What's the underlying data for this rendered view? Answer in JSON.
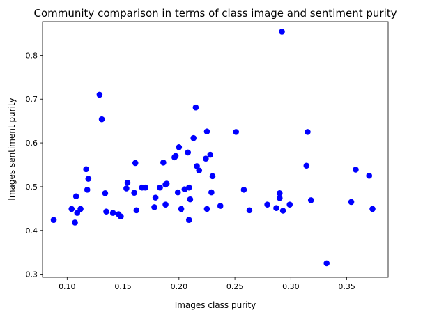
{
  "chart_data": {
    "type": "scatter",
    "title": "Community comparison in terms of class image and sentiment purity",
    "xlabel": "Images class purity",
    "ylabel": "Images sentiment purity",
    "xlim": [
      0.078,
      0.387
    ],
    "ylim": [
      0.293,
      0.877
    ],
    "x_ticks": [
      0.1,
      0.15,
      0.2,
      0.25,
      0.3,
      0.35
    ],
    "x_tick_labels": [
      "0.10",
      "0.15",
      "0.20",
      "0.25",
      "0.30",
      "0.35"
    ],
    "y_ticks": [
      0.3,
      0.4,
      0.5,
      0.6,
      0.7,
      0.8
    ],
    "y_tick_labels": [
      "0.3",
      "0.4",
      "0.5",
      "0.6",
      "0.7",
      "0.8"
    ],
    "grid": false,
    "legend": "none",
    "marker_color": "#0000ff",
    "points": [
      {
        "x": 0.088,
        "y": 0.424
      },
      {
        "x": 0.104,
        "y": 0.449
      },
      {
        "x": 0.107,
        "y": 0.418
      },
      {
        "x": 0.108,
        "y": 0.478
      },
      {
        "x": 0.109,
        "y": 0.44
      },
      {
        "x": 0.112,
        "y": 0.449
      },
      {
        "x": 0.117,
        "y": 0.54
      },
      {
        "x": 0.118,
        "y": 0.493
      },
      {
        "x": 0.119,
        "y": 0.518
      },
      {
        "x": 0.129,
        "y": 0.71
      },
      {
        "x": 0.131,
        "y": 0.654
      },
      {
        "x": 0.134,
        "y": 0.485
      },
      {
        "x": 0.135,
        "y": 0.443
      },
      {
        "x": 0.141,
        "y": 0.44
      },
      {
        "x": 0.146,
        "y": 0.437
      },
      {
        "x": 0.148,
        "y": 0.432
      },
      {
        "x": 0.153,
        "y": 0.496
      },
      {
        "x": 0.154,
        "y": 0.509
      },
      {
        "x": 0.16,
        "y": 0.486
      },
      {
        "x": 0.161,
        "y": 0.554
      },
      {
        "x": 0.162,
        "y": 0.446
      },
      {
        "x": 0.167,
        "y": 0.498
      },
      {
        "x": 0.17,
        "y": 0.498
      },
      {
        "x": 0.178,
        "y": 0.453
      },
      {
        "x": 0.179,
        "y": 0.475
      },
      {
        "x": 0.183,
        "y": 0.498
      },
      {
        "x": 0.186,
        "y": 0.555
      },
      {
        "x": 0.188,
        "y": 0.459
      },
      {
        "x": 0.188,
        "y": 0.505
      },
      {
        "x": 0.189,
        "y": 0.507
      },
      {
        "x": 0.196,
        "y": 0.567
      },
      {
        "x": 0.197,
        "y": 0.57
      },
      {
        "x": 0.199,
        "y": 0.487
      },
      {
        "x": 0.2,
        "y": 0.59
      },
      {
        "x": 0.202,
        "y": 0.449
      },
      {
        "x": 0.205,
        "y": 0.494
      },
      {
        "x": 0.208,
        "y": 0.578
      },
      {
        "x": 0.209,
        "y": 0.424
      },
      {
        "x": 0.209,
        "y": 0.498
      },
      {
        "x": 0.21,
        "y": 0.471
      },
      {
        "x": 0.213,
        "y": 0.611
      },
      {
        "x": 0.215,
        "y": 0.681
      },
      {
        "x": 0.216,
        "y": 0.547
      },
      {
        "x": 0.218,
        "y": 0.537
      },
      {
        "x": 0.224,
        "y": 0.564
      },
      {
        "x": 0.225,
        "y": 0.626
      },
      {
        "x": 0.225,
        "y": 0.449
      },
      {
        "x": 0.228,
        "y": 0.573
      },
      {
        "x": 0.229,
        "y": 0.487
      },
      {
        "x": 0.23,
        "y": 0.524
      },
      {
        "x": 0.237,
        "y": 0.456
      },
      {
        "x": 0.251,
        "y": 0.625
      },
      {
        "x": 0.258,
        "y": 0.493
      },
      {
        "x": 0.263,
        "y": 0.446
      },
      {
        "x": 0.279,
        "y": 0.459
      },
      {
        "x": 0.287,
        "y": 0.451
      },
      {
        "x": 0.29,
        "y": 0.485
      },
      {
        "x": 0.29,
        "y": 0.474
      },
      {
        "x": 0.292,
        "y": 0.854
      },
      {
        "x": 0.293,
        "y": 0.445
      },
      {
        "x": 0.299,
        "y": 0.459
      },
      {
        "x": 0.314,
        "y": 0.548
      },
      {
        "x": 0.315,
        "y": 0.625
      },
      {
        "x": 0.318,
        "y": 0.469
      },
      {
        "x": 0.332,
        "y": 0.325
      },
      {
        "x": 0.354,
        "y": 0.465
      },
      {
        "x": 0.358,
        "y": 0.539
      },
      {
        "x": 0.37,
        "y": 0.525
      },
      {
        "x": 0.373,
        "y": 0.449
      }
    ]
  }
}
